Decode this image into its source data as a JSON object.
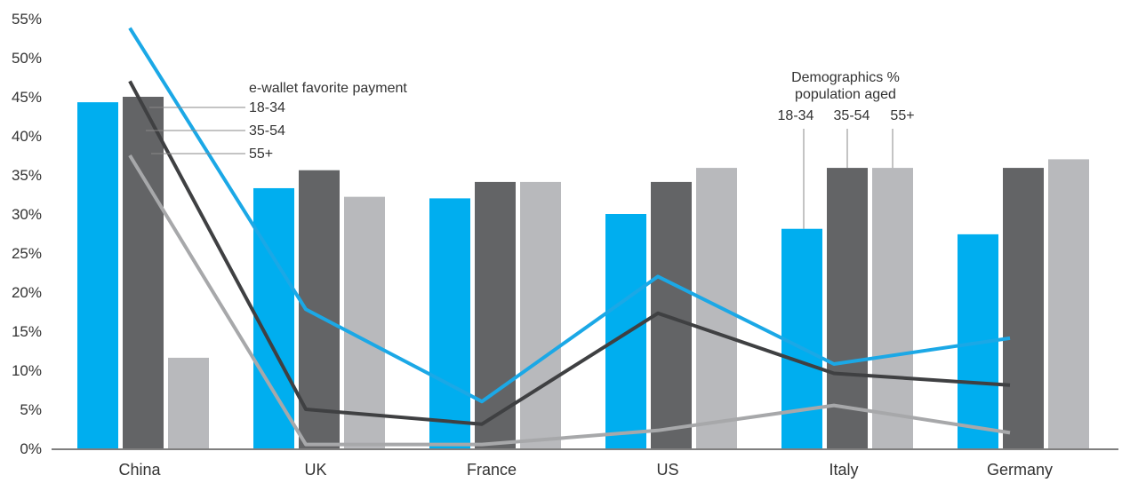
{
  "colors": {
    "age_18_34": "#00aeef",
    "age_35_54": "#636466",
    "age_55_plus": "#b8b9bc",
    "line_18_34": "#1ba8e6",
    "line_35_54": "#3f4042",
    "line_55_plus": "#a7a8aa",
    "axis": "#555555",
    "callout": "#888888"
  },
  "chart_data": {
    "type": "bar",
    "title": "",
    "xlabel": "",
    "ylabel": "",
    "ylim": [
      0,
      55
    ],
    "y_ticks": [
      "0%",
      "5%",
      "10%",
      "15%",
      "20%",
      "25%",
      "30%",
      "35%",
      "40%",
      "45%",
      "50%",
      "55%"
    ],
    "categories": [
      "China",
      "UK",
      "France",
      "US",
      "Italy",
      "Germany"
    ],
    "grid": false,
    "bar_legend": {
      "title": "Demographics %\npopulation aged",
      "labels": [
        "18-34",
        "35-54",
        "55+"
      ],
      "callout_category": "Italy"
    },
    "line_legend": {
      "title": "e-wallet favorite payment",
      "labels": [
        "18-34",
        "35-54",
        "55+"
      ]
    },
    "bar_series": [
      {
        "name": "18-34",
        "values": [
          44.3,
          33.3,
          32.0,
          30.0,
          28.1,
          27.4
        ]
      },
      {
        "name": "35-54",
        "values": [
          45.0,
          35.6,
          34.1,
          34.1,
          35.9,
          35.9
        ]
      },
      {
        "name": "55+",
        "values": [
          11.6,
          32.2,
          34.1,
          35.9,
          35.9,
          37.0
        ]
      }
    ],
    "line_series": [
      {
        "name": "18-34",
        "values": [
          53.8,
          17.8,
          6.0,
          22.0,
          10.8,
          14.1
        ]
      },
      {
        "name": "35-54",
        "values": [
          47.0,
          5.0,
          3.1,
          17.3,
          9.6,
          8.1
        ]
      },
      {
        "name": "55+",
        "values": [
          37.5,
          0.5,
          0.5,
          2.3,
          5.5,
          2.0
        ]
      }
    ]
  }
}
